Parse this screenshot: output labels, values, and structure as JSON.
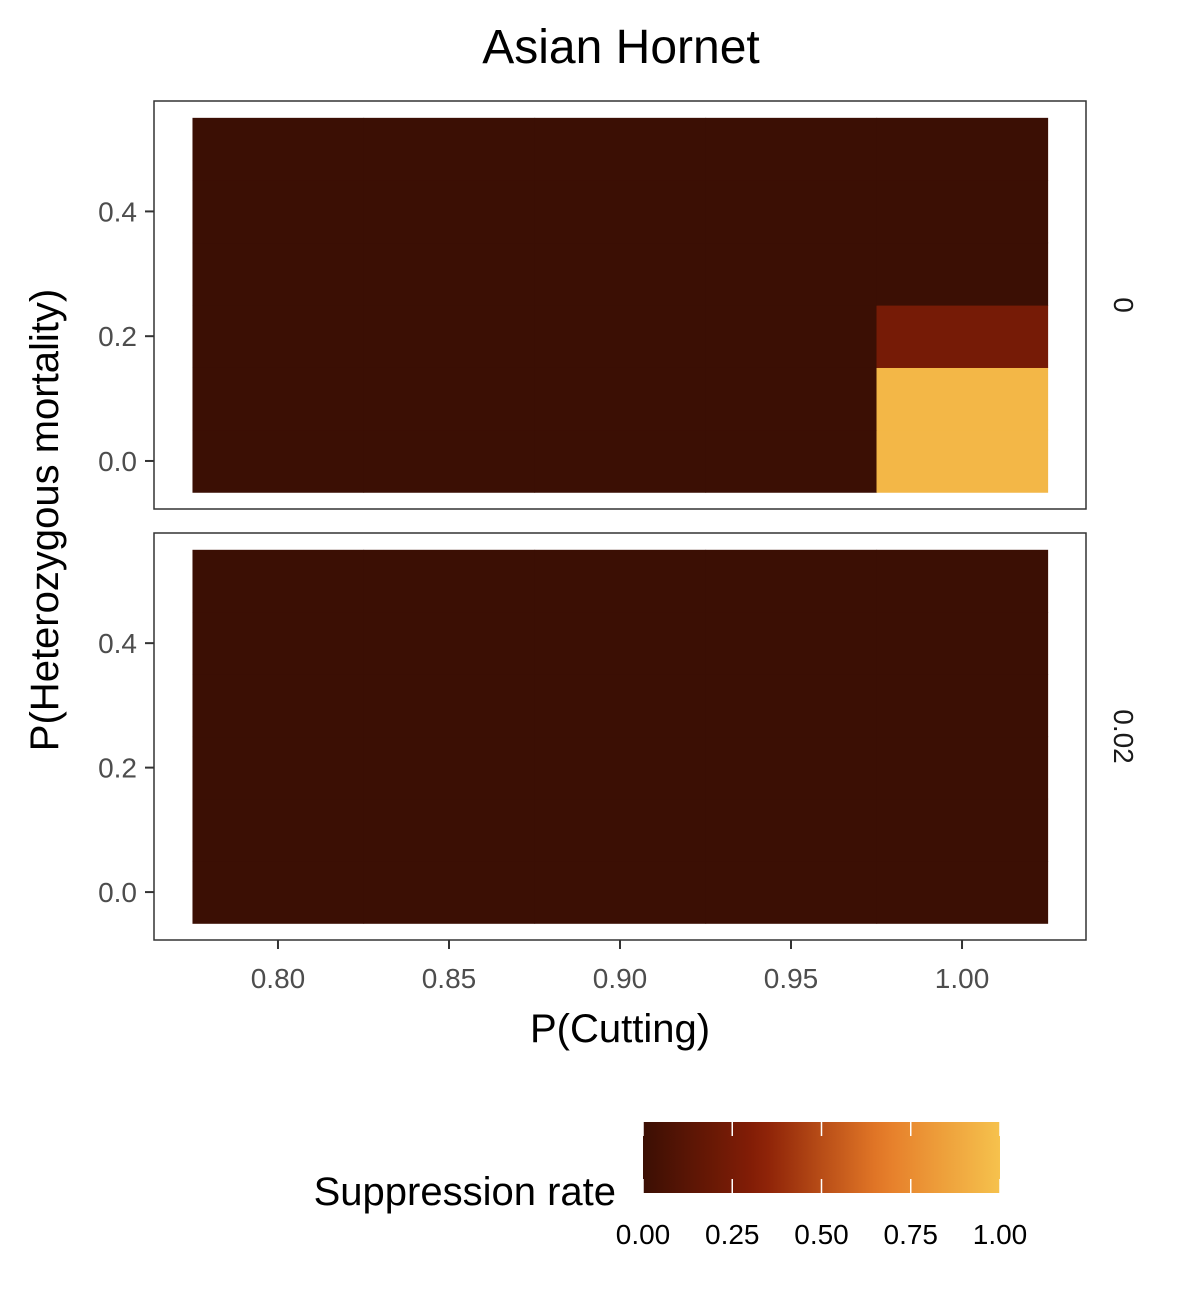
{
  "chart_data": {
    "type": "heatmap",
    "title": "Asian Hornet",
    "xlabel": "P(Cutting)",
    "ylabel": "P(Heterozygous mortality)",
    "x_ticks": [
      "0.80",
      "0.85",
      "0.90",
      "0.95",
      "1.00"
    ],
    "y_ticks": [
      "0.0",
      "0.2",
      "0.4"
    ],
    "x": [
      0.8,
      0.85,
      0.9,
      0.95,
      1.0
    ],
    "y": [
      0.0,
      0.1,
      0.2,
      0.3,
      0.4,
      0.5
    ],
    "facets": [
      {
        "label": "0",
        "values": [
          [
            0,
            0,
            0,
            0,
            0.95
          ],
          [
            0,
            0,
            0,
            0,
            0.95
          ],
          [
            0,
            0,
            0,
            0,
            0.25
          ],
          [
            0,
            0,
            0,
            0,
            0
          ],
          [
            0,
            0,
            0,
            0,
            0
          ],
          [
            0,
            0,
            0,
            0,
            0
          ]
        ]
      },
      {
        "label": "0.02",
        "values": [
          [
            0,
            0,
            0,
            0,
            0
          ],
          [
            0,
            0,
            0,
            0,
            0
          ],
          [
            0,
            0,
            0,
            0,
            0
          ],
          [
            0,
            0,
            0,
            0,
            0
          ],
          [
            0,
            0,
            0,
            0,
            0
          ],
          [
            0,
            0,
            0,
            0,
            0
          ]
        ]
      }
    ],
    "legend": {
      "title": "Suppression rate",
      "ticks": [
        "0.00",
        "0.25",
        "0.50",
        "0.75",
        "1.00"
      ],
      "range": [
        0,
        1
      ],
      "placement": "bottom"
    },
    "colorscale": [
      "#3b0f04",
      "#8a1f06",
      "#e57a28",
      "#f6c24d"
    ],
    "grid": false
  }
}
